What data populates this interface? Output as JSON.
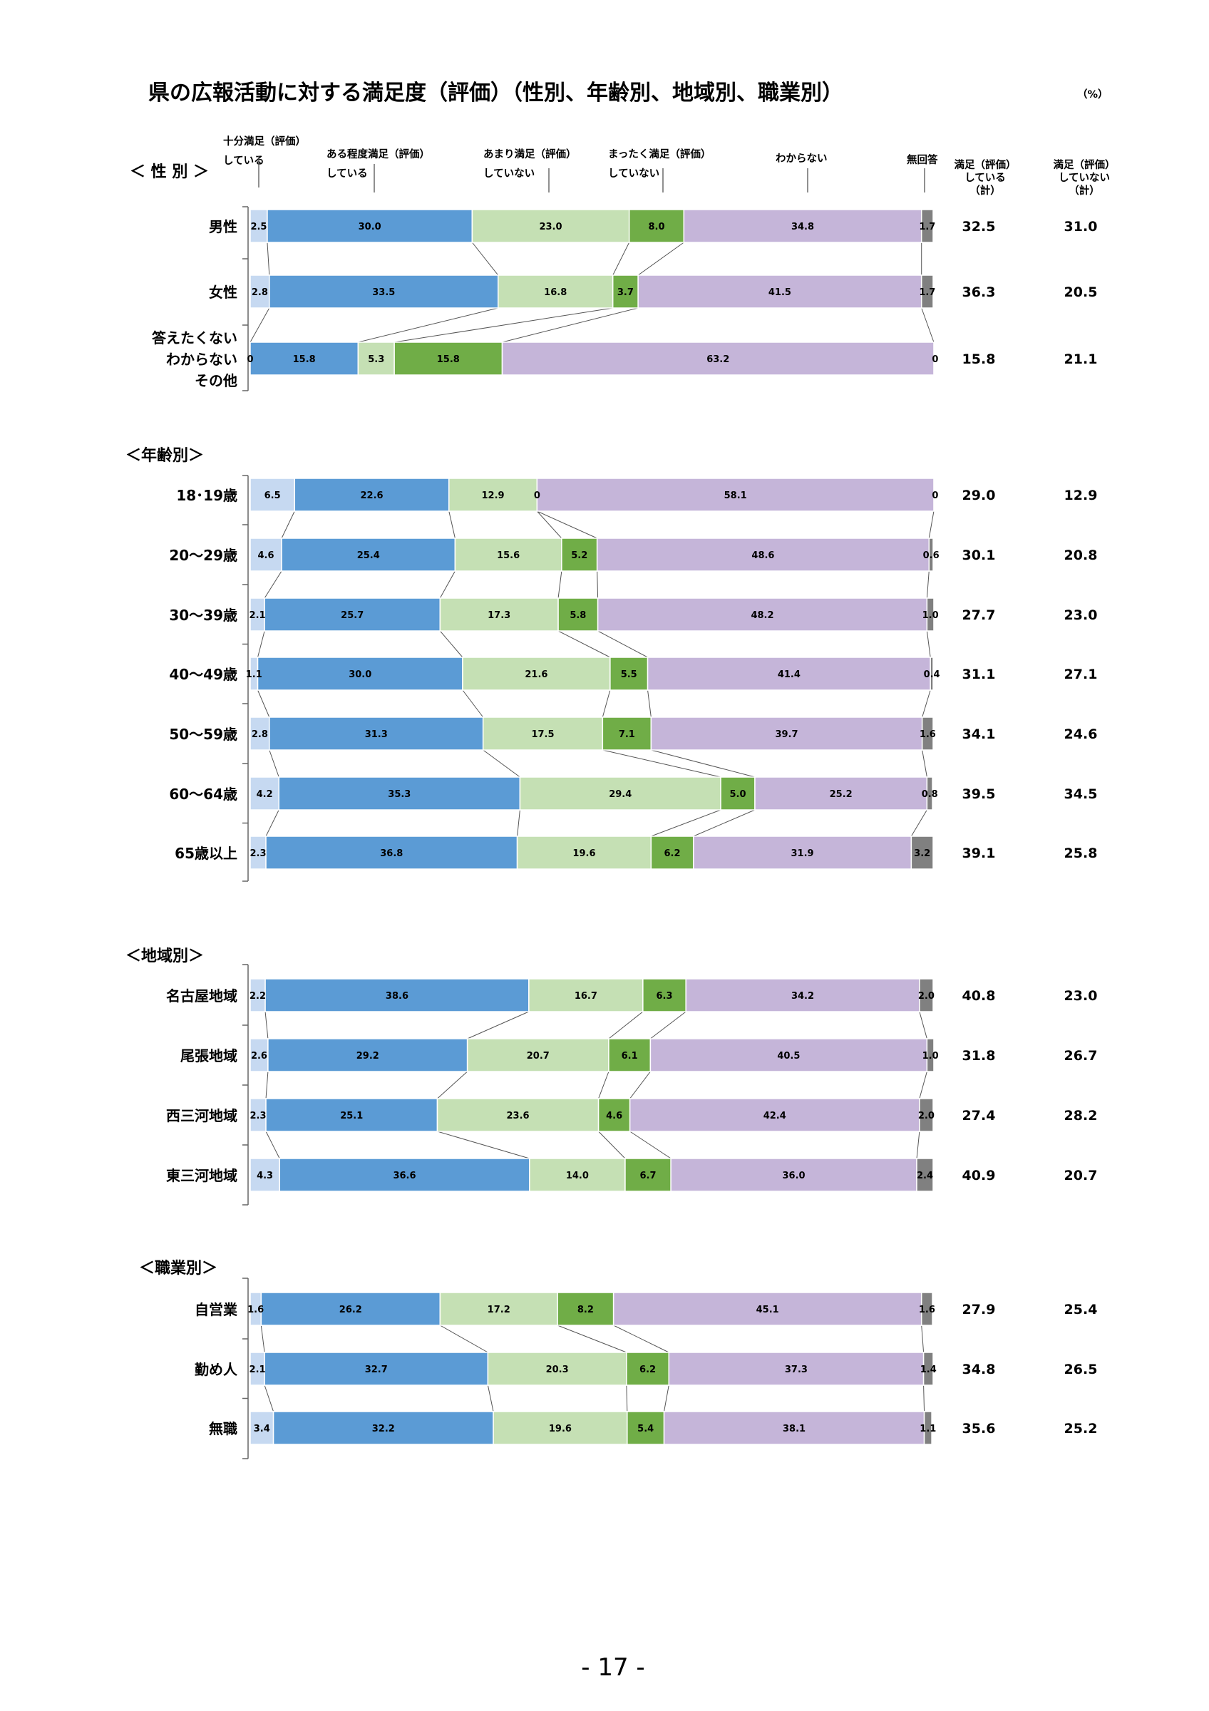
{
  "page": {
    "title": "県の広報活動に対する満足度（評価）（性別、年齢別、地域別、職業別）",
    "unit": "（%）",
    "page_number": "- 17 -"
  },
  "chart_data": {
    "type": "bar",
    "subtype": "stacked-horizontal-100",
    "series": [
      {
        "name": "十分満足（評価）している",
        "color": "#c6d9f1"
      },
      {
        "name": "ある程度満足（評価）している",
        "color": "#5b9bd5"
      },
      {
        "name": "あまり満足（評価）していない",
        "color": "#c5e0b4"
      },
      {
        "name": "まったく満足（評価）していない",
        "color": "#70ad47"
      },
      {
        "name": "わからない",
        "color": "#c5b5d9"
      },
      {
        "name": "無回答",
        "color": "#808080"
      }
    ],
    "total_headers": [
      "満足（評価）している（計）",
      "満足（評価）していない（計）"
    ],
    "legend": [
      {
        "line1": "十分満足（評価）",
        "line2": "している"
      },
      {
        "line1": "ある程度満足（評価）",
        "line2": "している"
      },
      {
        "line1": "あまり満足（評価）",
        "line2": "していない"
      },
      {
        "line1": "まったく満足（評価）",
        "line2": "していない"
      },
      {
        "line1": "わからない",
        "line2": ""
      },
      {
        "line1": "無回答",
        "line2": ""
      }
    ],
    "total_header_lines": [
      [
        "満足（評価）",
        "している",
        "（計）"
      ],
      [
        "満足（評価）",
        "していない",
        "（計）"
      ]
    ],
    "groups": [
      {
        "name": "＜ 性 別 ＞",
        "rows": [
          {
            "label": [
              "男性"
            ],
            "values": [
              2.5,
              30.0,
              23.0,
              8.0,
              34.8,
              1.7
            ],
            "labels": [
              "2.5",
              "30.0",
              "23.0",
              "8.0",
              "34.8",
              "1.7"
            ],
            "totals": [
              "32.5",
              "31.0"
            ]
          },
          {
            "label": [
              "女性"
            ],
            "values": [
              2.8,
              33.5,
              16.8,
              3.7,
              41.5,
              1.7
            ],
            "labels": [
              "2.8",
              "33.5",
              "16.8",
              "3.7",
              "41.5",
              "1.7"
            ],
            "totals": [
              "36.3",
              "20.5"
            ]
          },
          {
            "label": [
              "答えたくない",
              "わからない",
              "その他"
            ],
            "values": [
              0,
              15.8,
              5.3,
              15.8,
              63.2,
              0
            ],
            "labels": [
              "0",
              "15.8",
              "5.3",
              "15.8",
              "63.2",
              "0"
            ],
            "totals": [
              "15.8",
              "21.1"
            ]
          }
        ]
      },
      {
        "name": "＜年齢別＞",
        "rows": [
          {
            "label": [
              "18･19歳"
            ],
            "values": [
              6.5,
              22.6,
              12.9,
              0,
              58.1,
              0
            ],
            "labels": [
              "6.5",
              "22.6",
              "12.9",
              "0",
              "58.1",
              "0"
            ],
            "totals": [
              "29.0",
              "12.9"
            ]
          },
          {
            "label": [
              "20～29歳"
            ],
            "values": [
              4.6,
              25.4,
              15.6,
              5.2,
              48.6,
              0.6
            ],
            "labels": [
              "4.6",
              "25.4",
              "15.6",
              "5.2",
              "48.6",
              "0.6"
            ],
            "totals": [
              "30.1",
              "20.8"
            ]
          },
          {
            "label": [
              "30～39歳"
            ],
            "values": [
              2.1,
              25.7,
              17.3,
              5.8,
              48.2,
              1.0
            ],
            "labels": [
              "2.1",
              "25.7",
              "17.3",
              "5.8",
              "48.2",
              "1.0"
            ],
            "totals": [
              "27.7",
              "23.0"
            ]
          },
          {
            "label": [
              "40～49歳"
            ],
            "values": [
              1.1,
              30.0,
              21.6,
              5.5,
              41.4,
              0.4
            ],
            "labels": [
              "1.1",
              "30.0",
              "21.6",
              "5.5",
              "41.4",
              "0.4"
            ],
            "totals": [
              "31.1",
              "27.1"
            ]
          },
          {
            "label": [
              "50～59歳"
            ],
            "values": [
              2.8,
              31.3,
              17.5,
              7.1,
              39.7,
              1.6
            ],
            "labels": [
              "2.8",
              "31.3",
              "17.5",
              "7.1",
              "39.7",
              "1.6"
            ],
            "totals": [
              "34.1",
              "24.6"
            ]
          },
          {
            "label": [
              "60～64歳"
            ],
            "values": [
              4.2,
              35.3,
              29.4,
              5.0,
              25.2,
              0.8
            ],
            "labels": [
              "4.2",
              "35.3",
              "29.4",
              "5.0",
              "25.2",
              "0.8"
            ],
            "totals": [
              "39.5",
              "34.5"
            ]
          },
          {
            "label": [
              "65歳以上"
            ],
            "values": [
              2.3,
              36.8,
              19.6,
              6.2,
              31.9,
              3.2
            ],
            "labels": [
              "2.3",
              "36.8",
              "19.6",
              "6.2",
              "31.9",
              "3.2"
            ],
            "totals": [
              "39.1",
              "25.8"
            ]
          }
        ]
      },
      {
        "name": "＜地域別＞",
        "rows": [
          {
            "label": [
              "名古屋地域"
            ],
            "values": [
              2.2,
              38.6,
              16.7,
              6.3,
              34.2,
              2.0
            ],
            "labels": [
              "2.2",
              "38.6",
              "16.7",
              "6.3",
              "34.2",
              "2.0"
            ],
            "totals": [
              "40.8",
              "23.0"
            ]
          },
          {
            "label": [
              "尾張地域"
            ],
            "values": [
              2.6,
              29.2,
              20.7,
              6.1,
              40.5,
              1.0
            ],
            "labels": [
              "2.6",
              "29.2",
              "20.7",
              "6.1",
              "40.5",
              "1.0"
            ],
            "totals": [
              "31.8",
              "26.7"
            ]
          },
          {
            "label": [
              "西三河地域"
            ],
            "values": [
              2.3,
              25.1,
              23.6,
              4.6,
              42.4,
              2.0
            ],
            "labels": [
              "2.3",
              "25.1",
              "23.6",
              "4.6",
              "42.4",
              "2.0"
            ],
            "totals": [
              "27.4",
              "28.2"
            ]
          },
          {
            "label": [
              "東三河地域"
            ],
            "values": [
              4.3,
              36.6,
              14.0,
              6.7,
              36.0,
              2.4
            ],
            "labels": [
              "4.3",
              "36.6",
              "14.0",
              "6.7",
              "36.0",
              "2.4"
            ],
            "totals": [
              "40.9",
              "20.7"
            ]
          }
        ]
      },
      {
        "name": "＜職業別＞",
        "rows": [
          {
            "label": [
              "自営業"
            ],
            "values": [
              1.6,
              26.2,
              17.2,
              8.2,
              45.1,
              1.6
            ],
            "labels": [
              "1.6",
              "26.2",
              "17.2",
              "8.2",
              "45.1",
              "1.6"
            ],
            "totals": [
              "27.9",
              "25.4"
            ]
          },
          {
            "label": [
              "勤め人"
            ],
            "values": [
              2.1,
              32.7,
              20.3,
              6.2,
              37.3,
              1.4
            ],
            "labels": [
              "2.1",
              "32.7",
              "20.3",
              "6.2",
              "37.3",
              "1.4"
            ],
            "totals": [
              "34.8",
              "26.5"
            ]
          },
          {
            "label": [
              "無職"
            ],
            "values": [
              3.4,
              32.2,
              19.6,
              5.4,
              38.1,
              1.1
            ],
            "labels": [
              "3.4",
              "32.2",
              "19.6",
              "5.4",
              "38.1",
              "1.1"
            ],
            "totals": [
              "35.6",
              "25.2"
            ]
          }
        ]
      }
    ]
  }
}
